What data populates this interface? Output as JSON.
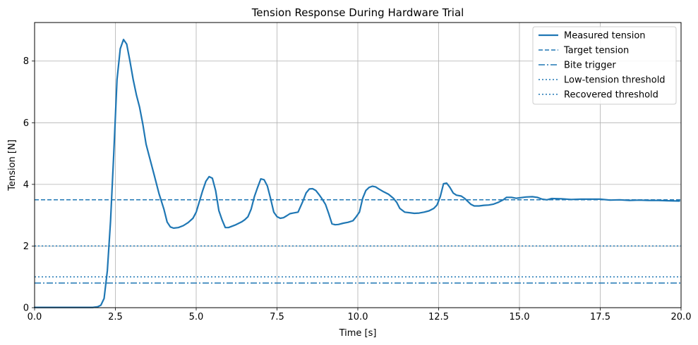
{
  "chart_data": {
    "type": "line",
    "title": "Tension Response During Hardware Trial",
    "xlabel": "Time [s]",
    "ylabel": "Tension [N]",
    "xlim": [
      0,
      20
    ],
    "ylim": [
      0,
      9.25
    ],
    "xticks": [
      0,
      2.5,
      5,
      7.5,
      10,
      12.5,
      15,
      17.5,
      20
    ],
    "xtick_labels": [
      "0.0",
      "2.5",
      "5.0",
      "7.5",
      "10.0",
      "12.5",
      "15.0",
      "17.5",
      "20.0"
    ],
    "yticks": [
      0,
      2,
      4,
      6,
      8
    ],
    "ytick_labels": [
      "0",
      "2",
      "4",
      "6",
      "8"
    ],
    "grid": true,
    "legend_position": "top-right",
    "color": "#1f77b4",
    "series": [
      {
        "name": "Measured tension",
        "style": "solid",
        "x": [
          0,
          0.5,
          1.0,
          1.5,
          1.8,
          1.95,
          2.05,
          2.15,
          2.25,
          2.35,
          2.45,
          2.55,
          2.65,
          2.75,
          2.85,
          2.95,
          3.05,
          3.15,
          3.25,
          3.35,
          3.45,
          3.55,
          3.7,
          3.85,
          4.0,
          4.1,
          4.2,
          4.3,
          4.45,
          4.6,
          4.75,
          4.9,
          5.0,
          5.1,
          5.2,
          5.3,
          5.4,
          5.5,
          5.6,
          5.7,
          5.8,
          5.9,
          6.0,
          6.2,
          6.4,
          6.5,
          6.6,
          6.7,
          6.8,
          6.9,
          7.0,
          7.1,
          7.2,
          7.3,
          7.4,
          7.5,
          7.6,
          7.7,
          7.8,
          7.9,
          8.0,
          8.15,
          8.3,
          8.4,
          8.5,
          8.6,
          8.7,
          8.8,
          8.9,
          9.0,
          9.1,
          9.2,
          9.3,
          9.4,
          9.55,
          9.7,
          9.85,
          9.95,
          10.05,
          10.15,
          10.25,
          10.35,
          10.45,
          10.55,
          10.65,
          10.8,
          10.95,
          11.1,
          11.2,
          11.3,
          11.45,
          11.6,
          11.75,
          11.9,
          12.05,
          12.2,
          12.35,
          12.45,
          12.55,
          12.65,
          12.75,
          12.85,
          12.95,
          13.05,
          13.2,
          13.3,
          13.4,
          13.5,
          13.6,
          13.75,
          13.9,
          14.05,
          14.2,
          14.35,
          14.5,
          14.6,
          14.75,
          14.9,
          15.05,
          15.2,
          15.4,
          15.55,
          15.7,
          15.85,
          16.0,
          16.3,
          16.6,
          16.9,
          17.2,
          17.5,
          17.8,
          18.1,
          18.4,
          18.7,
          19.0,
          19.3,
          19.6,
          19.95
        ],
        "y": [
          0.01,
          0.01,
          0.01,
          0.01,
          0.01,
          0.03,
          0.08,
          0.3,
          1.2,
          2.8,
          5.0,
          7.4,
          8.4,
          8.7,
          8.55,
          8.0,
          7.4,
          6.9,
          6.5,
          5.95,
          5.3,
          4.9,
          4.3,
          3.7,
          3.2,
          2.78,
          2.62,
          2.58,
          2.6,
          2.66,
          2.76,
          2.9,
          3.1,
          3.45,
          3.8,
          4.1,
          4.25,
          4.2,
          3.8,
          3.15,
          2.85,
          2.6,
          2.6,
          2.68,
          2.78,
          2.85,
          2.95,
          3.2,
          3.6,
          3.9,
          4.18,
          4.15,
          3.95,
          3.55,
          3.1,
          2.95,
          2.9,
          2.92,
          2.98,
          3.05,
          3.07,
          3.1,
          3.45,
          3.72,
          3.85,
          3.86,
          3.8,
          3.67,
          3.52,
          3.35,
          3.05,
          2.72,
          2.69,
          2.7,
          2.74,
          2.77,
          2.82,
          2.95,
          3.1,
          3.55,
          3.8,
          3.9,
          3.94,
          3.92,
          3.85,
          3.76,
          3.68,
          3.55,
          3.42,
          3.22,
          3.1,
          3.08,
          3.06,
          3.07,
          3.1,
          3.14,
          3.22,
          3.33,
          3.6,
          4.02,
          4.04,
          3.9,
          3.72,
          3.65,
          3.62,
          3.55,
          3.45,
          3.35,
          3.3,
          3.3,
          3.32,
          3.33,
          3.36,
          3.42,
          3.5,
          3.58,
          3.58,
          3.55,
          3.57,
          3.59,
          3.6,
          3.58,
          3.52,
          3.5,
          3.54,
          3.53,
          3.51,
          3.52,
          3.52,
          3.52,
          3.49,
          3.5,
          3.48,
          3.49,
          3.48,
          3.48,
          3.47,
          3.46
        ]
      },
      {
        "name": "Target tension",
        "style": "dashed",
        "y_constant": 3.5
      },
      {
        "name": "Bite trigger",
        "style": "dashdot",
        "y_constant": 0.8
      },
      {
        "name": "Low-tension threshold",
        "style": "dotted",
        "y_constant": 2.0
      },
      {
        "name": "Recovered threshold",
        "style": "dotted",
        "y_constant": 1.0
      }
    ]
  }
}
